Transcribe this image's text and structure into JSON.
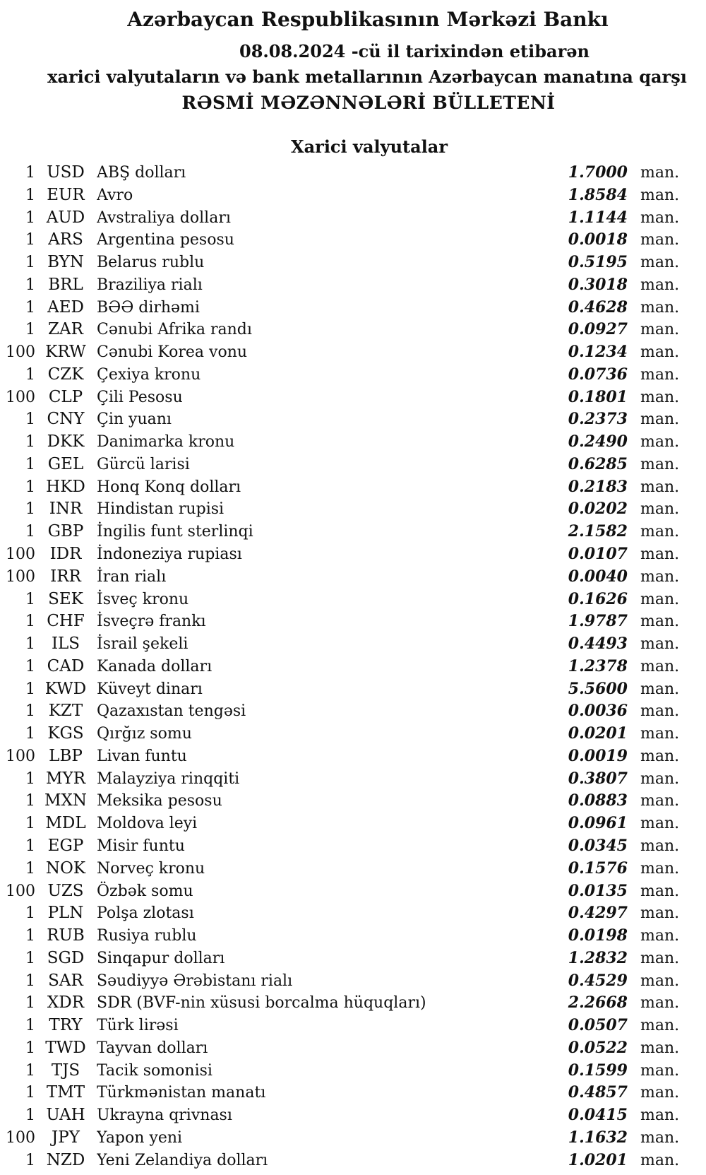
{
  "colors": {
    "background": "#ffffff",
    "text": "#111111"
  },
  "header": {
    "bank_title": "Azərbaycan Respublikasının Mərkəzi Bankı",
    "effective_date_line": "08.08.2024 -cü il tarixindən etibarən",
    "description_line": "xarici valyutaların və bank metallarının Azərbaycan manatına qarşı",
    "bulletin_title": "RƏSMİ MƏZƏNNƏLƏRİ BÜLLETENİ"
  },
  "table": {
    "section_title": "Xarici valyutalar",
    "unit_label": "man.",
    "rows": [
      {
        "qty": "1",
        "code": "USD",
        "name": "ABŞ dolları",
        "rate": "1.7000"
      },
      {
        "qty": "1",
        "code": "EUR",
        "name": "Avro",
        "rate": "1.8584"
      },
      {
        "qty": "1",
        "code": "AUD",
        "name": "Avstraliya dolları",
        "rate": "1.1144"
      },
      {
        "qty": "1",
        "code": "ARS",
        "name": "Argentina pesosu",
        "rate": "0.0018"
      },
      {
        "qty": "1",
        "code": "BYN",
        "name": "Belarus rublu",
        "rate": "0.5195"
      },
      {
        "qty": "1",
        "code": "BRL",
        "name": "Braziliya rialı",
        "rate": "0.3018"
      },
      {
        "qty": "1",
        "code": "AED",
        "name": "BƏƏ dirhəmi",
        "rate": "0.4628"
      },
      {
        "qty": "1",
        "code": "ZAR",
        "name": "Cənubi Afrika randı",
        "rate": "0.0927"
      },
      {
        "qty": "100",
        "code": "KRW",
        "name": "Cənubi Korea vonu",
        "rate": "0.1234"
      },
      {
        "qty": "1",
        "code": "CZK",
        "name": "Çexiya kronu",
        "rate": "0.0736"
      },
      {
        "qty": "100",
        "code": "CLP",
        "name": "Çili Pesosu",
        "rate": "0.1801"
      },
      {
        "qty": "1",
        "code": "CNY",
        "name": "Çin yuanı",
        "rate": "0.2373"
      },
      {
        "qty": "1",
        "code": "DKK",
        "name": "Danimarka kronu",
        "rate": "0.2490"
      },
      {
        "qty": "1",
        "code": "GEL",
        "name": "Gürcü larisi",
        "rate": "0.6285"
      },
      {
        "qty": "1",
        "code": "HKD",
        "name": "Honq Konq dolları",
        "rate": "0.2183"
      },
      {
        "qty": "1",
        "code": "INR",
        "name": "Hindistan rupisi",
        "rate": "0.0202"
      },
      {
        "qty": "1",
        "code": "GBP",
        "name": "İngilis funt sterlinqi",
        "rate": "2.1582"
      },
      {
        "qty": "100",
        "code": "IDR",
        "name": "İndoneziya rupiası",
        "rate": "0.0107"
      },
      {
        "qty": "100",
        "code": "IRR",
        "name": "İran rialı",
        "rate": "0.0040"
      },
      {
        "qty": "1",
        "code": "SEK",
        "name": "İsveç kronu",
        "rate": "0.1626"
      },
      {
        "qty": "1",
        "code": "CHF",
        "name": "İsveçrə frankı",
        "rate": "1.9787"
      },
      {
        "qty": "1",
        "code": "ILS",
        "name": "İsrail şekeli",
        "rate": "0.4493"
      },
      {
        "qty": "1",
        "code": "CAD",
        "name": "Kanada dolları",
        "rate": "1.2378"
      },
      {
        "qty": "1",
        "code": "KWD",
        "name": "Küveyt dinarı",
        "rate": "5.5600"
      },
      {
        "qty": "1",
        "code": "KZT",
        "name": "Qazaxıstan tengəsi",
        "rate": "0.0036"
      },
      {
        "qty": "1",
        "code": "KGS",
        "name": "Qırğız somu",
        "rate": "0.0201"
      },
      {
        "qty": "100",
        "code": "LBP",
        "name": "Livan funtu",
        "rate": "0.0019"
      },
      {
        "qty": "1",
        "code": "MYR",
        "name": "Malayziya rinqqiti",
        "rate": "0.3807"
      },
      {
        "qty": "1",
        "code": "MXN",
        "name": "Meksika pesosu",
        "rate": "0.0883"
      },
      {
        "qty": "1",
        "code": "MDL",
        "name": "Moldova leyi",
        "rate": "0.0961"
      },
      {
        "qty": "1",
        "code": "EGP",
        "name": "Misir funtu",
        "rate": "0.0345"
      },
      {
        "qty": "1",
        "code": "NOK",
        "name": "Norveç kronu",
        "rate": "0.1576"
      },
      {
        "qty": "100",
        "code": "UZS",
        "name": "Özbək somu",
        "rate": "0.0135"
      },
      {
        "qty": "1",
        "code": "PLN",
        "name": "Polşa zlotası",
        "rate": "0.4297"
      },
      {
        "qty": "1",
        "code": "RUB",
        "name": "Rusiya rublu",
        "rate": "0.0198"
      },
      {
        "qty": "1",
        "code": "SGD",
        "name": "Sinqapur dolları",
        "rate": "1.2832"
      },
      {
        "qty": "1",
        "code": "SAR",
        "name": "Səudiyyə Ərəbistanı rialı",
        "rate": "0.4529"
      },
      {
        "qty": "1",
        "code": "XDR",
        "name": "SDR (BVF-nin xüsusi borcalma hüquqları)",
        "rate": "2.2668"
      },
      {
        "qty": "1",
        "code": "TRY",
        "name": "Türk lirəsi",
        "rate": "0.0507"
      },
      {
        "qty": "1",
        "code": "TWD",
        "name": "Tayvan dolları",
        "rate": "0.0522"
      },
      {
        "qty": "1",
        "code": "TJS",
        "name": "Tacik somonisi",
        "rate": "0.1599"
      },
      {
        "qty": "1",
        "code": "TMT",
        "name": "Türkmənistan manatı",
        "rate": "0.4857"
      },
      {
        "qty": "1",
        "code": "UAH",
        "name": "Ukrayna qrivnası",
        "rate": "0.0415"
      },
      {
        "qty": "100",
        "code": "JPY",
        "name": "Yapon yeni",
        "rate": "1.1632"
      },
      {
        "qty": "1",
        "code": "NZD",
        "name": "Yeni Zelandiya dolları",
        "rate": "1.0201"
      }
    ]
  }
}
